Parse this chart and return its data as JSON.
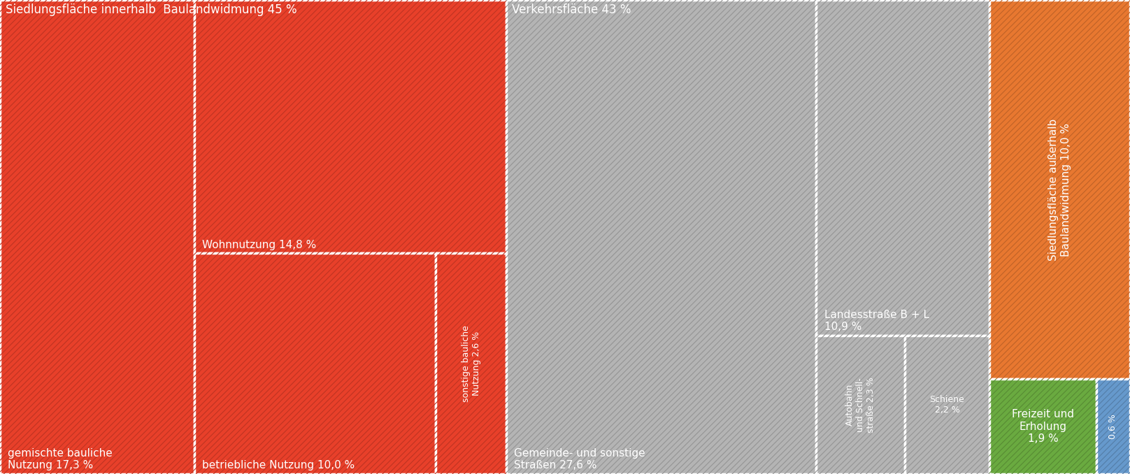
{
  "background_color": "#f0f0eb",
  "fig_w": 16.16,
  "fig_h": 6.78,
  "dpi": 100,
  "border_color": "#ffffff",
  "border_lw": 2.5,
  "red_color": "#e8402a",
  "gray_color": "#b4b4b4",
  "orange_color": "#e87830",
  "green_color": "#6aaa40",
  "blue_color": "#6699cc",
  "hatch": "////",
  "hatch_lw": 0.8,
  "values": {
    "gemischte": 17.3,
    "wohnnutzung": 14.8,
    "betriebliche": 10.0,
    "sonstige_bauliche": 2.6,
    "gemeinde": 27.6,
    "landesstrasse": 10.9,
    "autobahn": 2.3,
    "schiene": 2.2,
    "siedlung_aussen": 10.0,
    "freizeit": 1.9,
    "sonstige_tiny": 0.6
  },
  "labels": {
    "gemischte": "gemischte bauliche\nNutzung 17,3 %",
    "wohnnutzung": "Wohnnutzung 14,8 %",
    "betriebliche": "betriebliche Nutzung 10,0 %",
    "sonstige_bauliche": "sonstige bauliche\nNutzung 2,6 %",
    "gemeinde": "Gemeinde- und sonstige\nStraßen 27,6 %",
    "landesstrasse": "Landesstraße B + L\n10,9 %",
    "autobahn": "Autobahn\nund Schnell-\nstraße 2,3 %",
    "schiene": "Schiene\n2,2 %",
    "siedlung_aussen": "Siedlungsfläche außerhalb\nBaulandwidmung 10,0 %",
    "freizeit": "Freizeit und\nErholung\n1,9 %",
    "sonstige_tiny": "0,6 %"
  },
  "group_labels": {
    "red": "Siedlungsfläche innerhalb  Baulandwidmung 45 %",
    "gray": "Verkehrsfläche 43 %"
  }
}
